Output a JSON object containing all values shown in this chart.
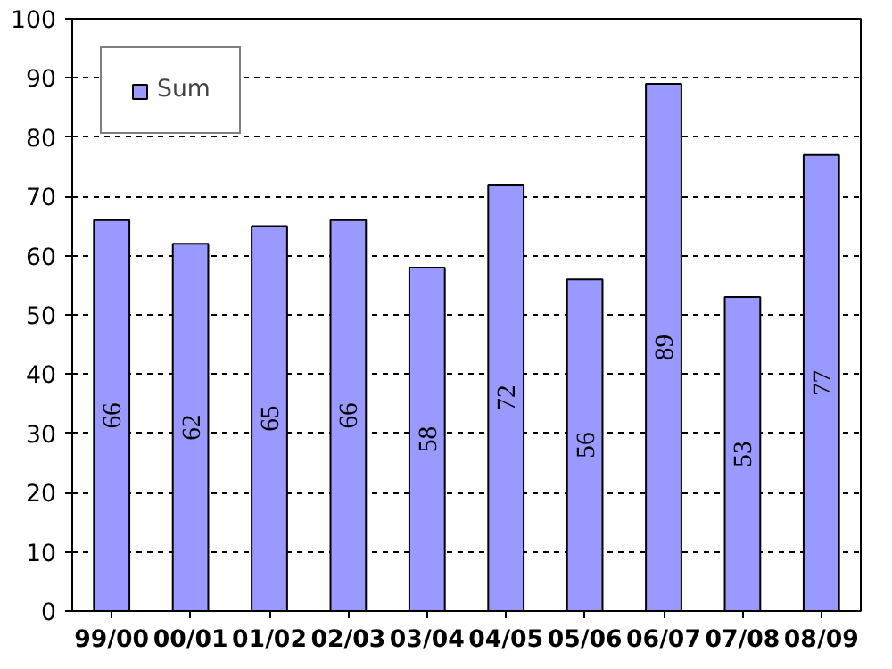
{
  "chart_data": {
    "type": "bar",
    "categories": [
      "99/00",
      "00/01",
      "01/02",
      "02/03",
      "03/04",
      "04/05",
      "05/06",
      "06/07",
      "07/08",
      "08/09"
    ],
    "series": [
      {
        "name": "Sum",
        "color": "#9999ff",
        "values": [
          66,
          62,
          65,
          66,
          58,
          72,
          56,
          89,
          53,
          77
        ]
      }
    ],
    "ylim": [
      0,
      100
    ],
    "yticks": [
      0,
      10,
      20,
      30,
      40,
      50,
      60,
      70,
      80,
      90,
      100
    ],
    "grid": "y",
    "legend": "top left",
    "data_labels": true
  }
}
